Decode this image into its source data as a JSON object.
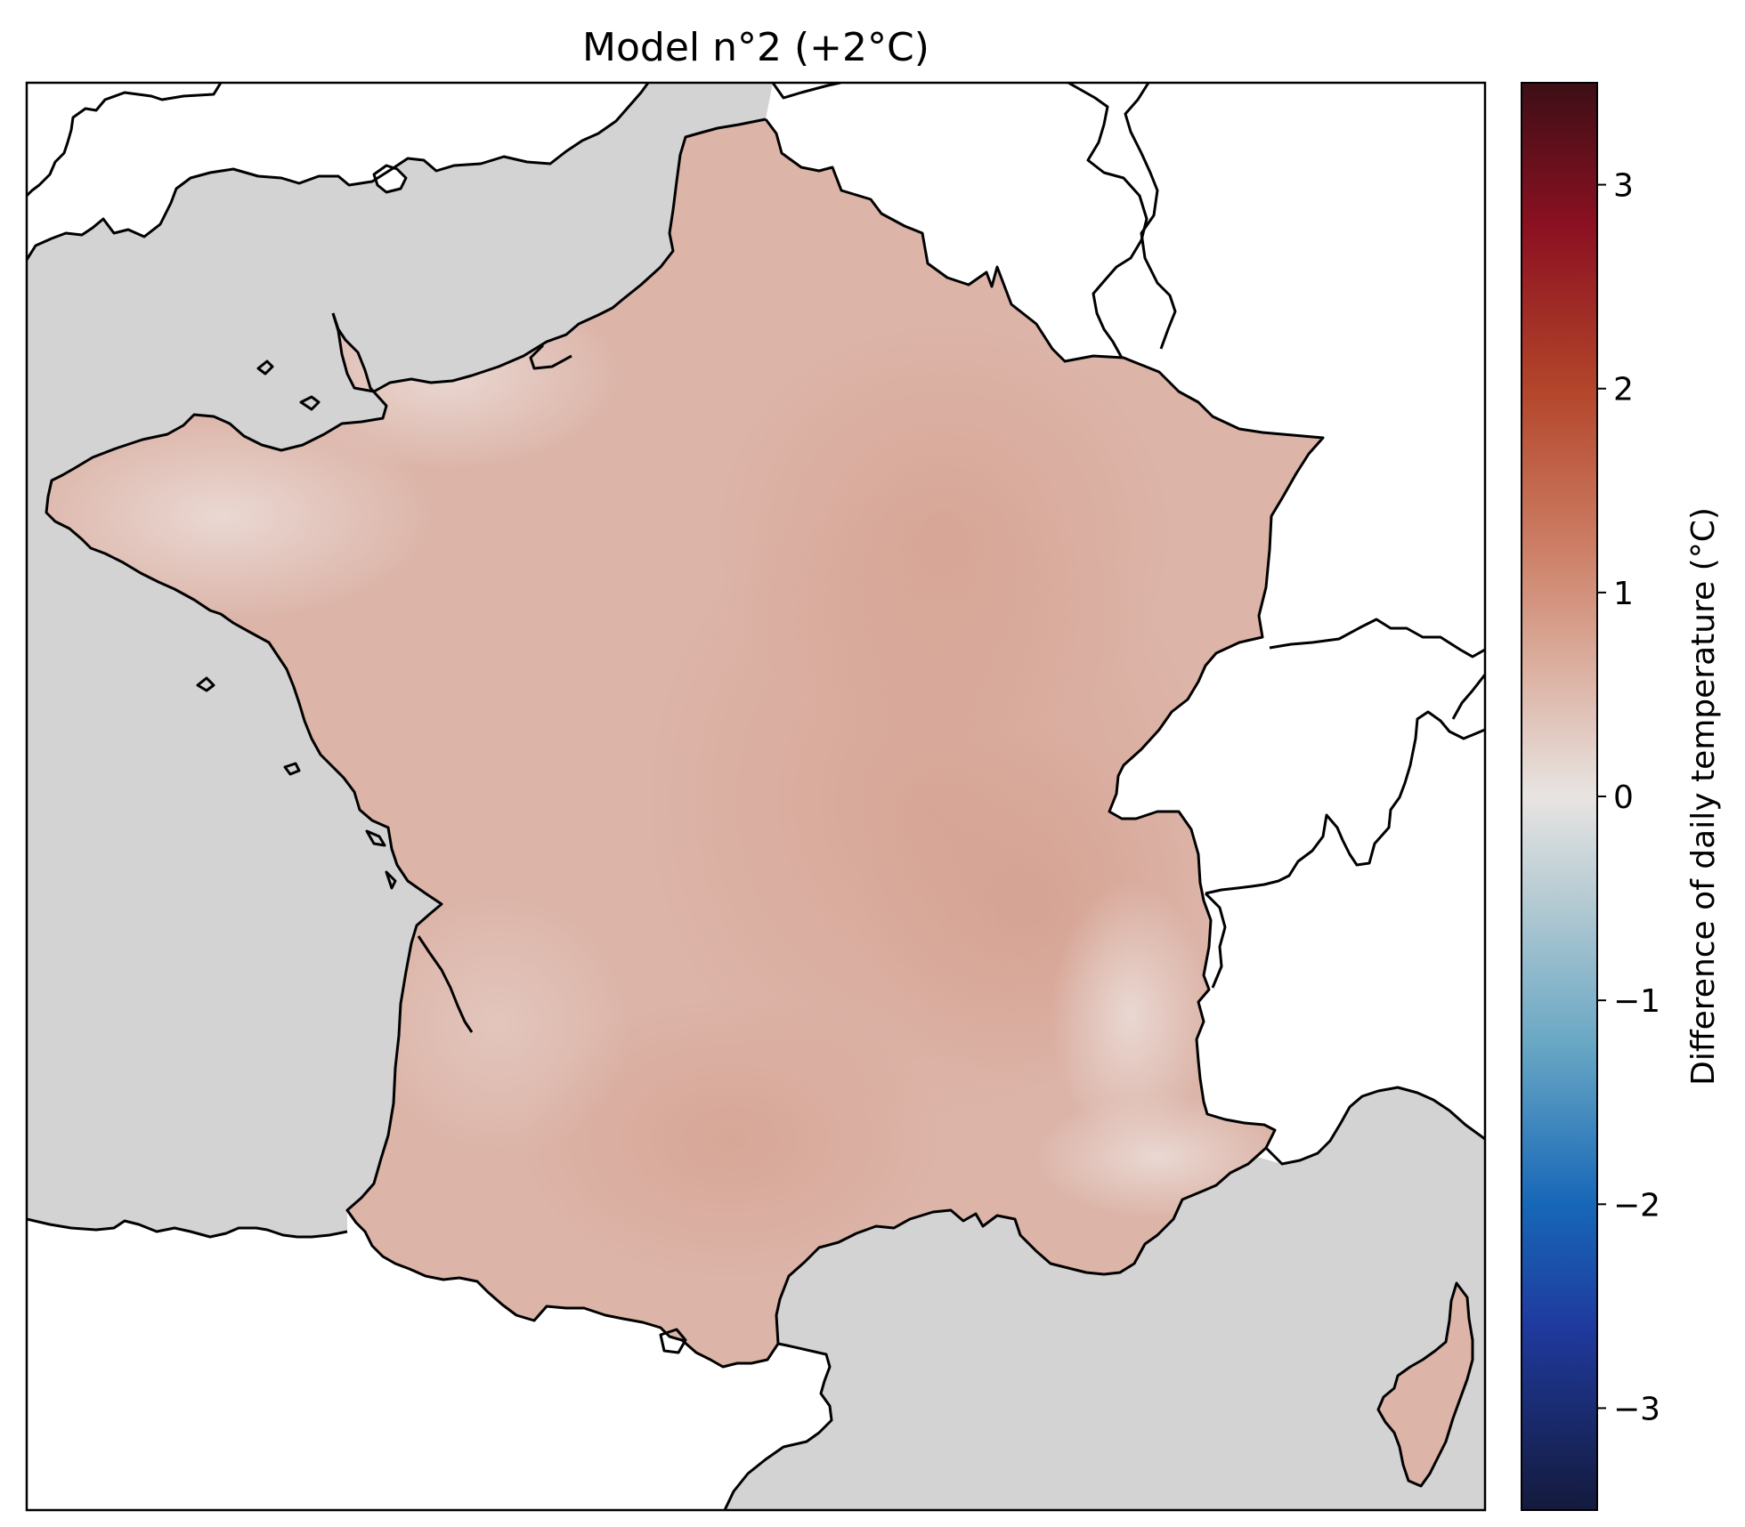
{
  "title": "Model n°2 (+2°C)",
  "colorbar": {
    "label": "Difference of daily temperature (°C)",
    "range": [
      -3.5,
      3.5
    ],
    "ticks": [
      3,
      2,
      1,
      0,
      -1,
      -2,
      -3
    ],
    "tick_labels": [
      "3",
      "2",
      "1",
      "0",
      "−1",
      "−2",
      "−3"
    ],
    "colormap_stops": [
      {
        "value": -3.5,
        "color": "#141a3c"
      },
      {
        "value": -2.6,
        "color": "#1f3a9e"
      },
      {
        "value": -2.0,
        "color": "#1767b8"
      },
      {
        "value": -1.2,
        "color": "#6aa8c4"
      },
      {
        "value": -0.5,
        "color": "#b6cbd3"
      },
      {
        "value": 0.0,
        "color": "#e8e4e2"
      },
      {
        "value": 0.6,
        "color": "#dcb2a3"
      },
      {
        "value": 1.2,
        "color": "#cd8067"
      },
      {
        "value": 2.0,
        "color": "#b3452a"
      },
      {
        "value": 2.8,
        "color": "#8b1021"
      },
      {
        "value": 3.5,
        "color": "#3d0f16"
      }
    ]
  },
  "map": {
    "region": "France",
    "field_mean_value": 0.65,
    "ocean_color": "#d3d3d3",
    "land_outside_color": "#ffffff",
    "field_color": "#dcb4a8",
    "field_color_warmer": "#d7a494",
    "field_color_cooler": "#e6d2cc"
  }
}
